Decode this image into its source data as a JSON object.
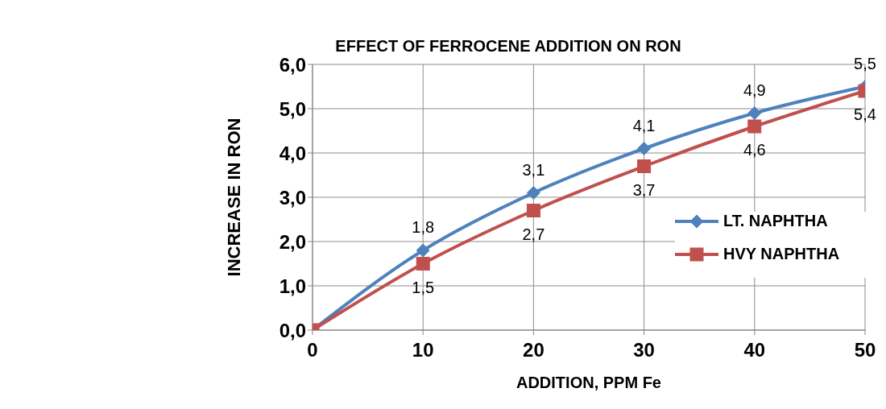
{
  "chart_data": {
    "type": "line",
    "title": "EFFECT OF FERROCENE ADDITION ON RON",
    "xlabel": "ADDITION, PPM Fe",
    "ylabel": "INCREASE IN RON",
    "x": [
      0,
      10,
      20,
      30,
      40,
      50
    ],
    "series": [
      {
        "name": "LT. NAPHTHA",
        "color": "#4f81bd",
        "marker": "diamond",
        "values": [
          0,
          1.8,
          3.1,
          4.1,
          4.9,
          5.5
        ],
        "value_labels": [
          null,
          "1,8",
          "3,1",
          "4,1",
          "4,9",
          "5,5"
        ]
      },
      {
        "name": "HVY NAPHTHA",
        "color": "#c0504d",
        "marker": "square",
        "values": [
          0,
          1.5,
          2.7,
          3.7,
          4.6,
          5.4
        ],
        "value_labels": [
          null,
          "1,5",
          "2,7",
          "3,7",
          "4,6",
          "5,4"
        ]
      }
    ],
    "xlim": [
      0,
      50
    ],
    "xticks": [
      0,
      10,
      20,
      30,
      40,
      50
    ],
    "ylim": [
      0,
      6
    ],
    "yticks": [
      {
        "value": 0,
        "label": "0,0"
      },
      {
        "value": 1,
        "label": "1,0"
      },
      {
        "value": 2,
        "label": "2,0"
      },
      {
        "value": 3,
        "label": "3,0"
      },
      {
        "value": 4,
        "label": "4,0"
      },
      {
        "value": 5,
        "label": "5,0"
      },
      {
        "value": 6,
        "label": "6,0"
      }
    ],
    "grid": true,
    "legend": "right",
    "line_style": "solid"
  }
}
